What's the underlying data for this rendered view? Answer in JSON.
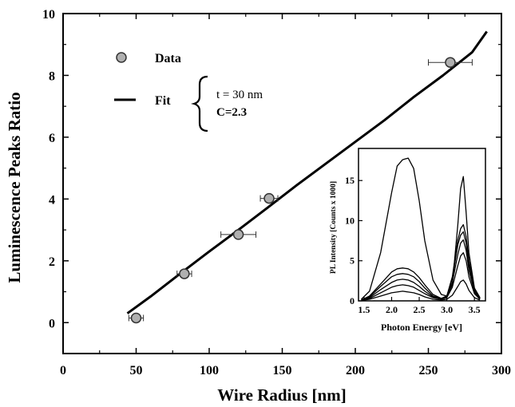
{
  "chart_data": [
    {
      "type": "scatter",
      "xlabel": "Wire Radius  [nm]",
      "ylabel": "Luminescence Peaks Ratio",
      "xlim": [
        0,
        300
      ],
      "ylim": [
        -1,
        10
      ],
      "xticks": [
        0,
        50,
        100,
        150,
        200,
        250,
        300
      ],
      "yticks": [
        0,
        2,
        4,
        6,
        8,
        10
      ],
      "grid": false,
      "legend_position": "top-left",
      "series": [
        {
          "name": "Data",
          "marker": "circle",
          "color": "#b0b0b0",
          "x": [
            50,
            83,
            120,
            141,
            265
          ],
          "y": [
            0.15,
            1.58,
            2.85,
            4.02,
            8.42
          ],
          "x_err": [
            5,
            5,
            12,
            6,
            15
          ]
        },
        {
          "name": "Fit",
          "style": "line",
          "color": "#000000",
          "x": [
            44,
            60,
            80,
            100,
            120,
            140,
            160,
            180,
            200,
            220,
            240,
            260,
            280,
            290
          ],
          "y": [
            0.3,
            0.85,
            1.58,
            2.3,
            3.0,
            3.72,
            4.45,
            5.15,
            5.85,
            6.55,
            7.3,
            8.0,
            8.75,
            9.42
          ]
        }
      ],
      "annotation": {
        "line1": "t = 30 nm",
        "line2": "C=2.3"
      }
    },
    {
      "type": "line",
      "role": "inset",
      "xlabel": "Photon Energy  [eV]",
      "ylabel": "PL Intensity  [Counts x 1000]",
      "xlim": [
        1.4,
        3.7
      ],
      "ylim": [
        0,
        19
      ],
      "xticks": [
        1.5,
        2.0,
        2.5,
        3.0,
        3.5
      ],
      "xtick_labels": [
        "1.5",
        "2.0",
        "2.5",
        "3.0",
        "3.5"
      ],
      "yticks": [
        0,
        5,
        10,
        15
      ],
      "series": [
        {
          "x": [
            1.45,
            1.6,
            1.8,
            2.0,
            2.1,
            2.2,
            2.3,
            2.4,
            2.5,
            2.6,
            2.75,
            2.9,
            3.0,
            3.1,
            3.2,
            3.25,
            3.3,
            3.35,
            3.4,
            3.5,
            3.6
          ],
          "y": [
            0.2,
            1.2,
            6.0,
            13.5,
            16.8,
            17.6,
            17.8,
            16.5,
            12.5,
            7.5,
            2.6,
            0.8,
            0.6,
            2.0,
            9.5,
            14.0,
            15.5,
            11.0,
            6.0,
            1.6,
            0.4
          ]
        },
        {
          "x": [
            1.45,
            1.6,
            1.8,
            2.0,
            2.1,
            2.2,
            2.3,
            2.4,
            2.5,
            2.6,
            2.75,
            2.9,
            3.0,
            3.1,
            3.2,
            3.25,
            3.3,
            3.35,
            3.4,
            3.5,
            3.6
          ],
          "y": [
            0.1,
            0.6,
            2.1,
            3.6,
            4.0,
            4.1,
            4.0,
            3.6,
            2.9,
            2.0,
            0.8,
            0.3,
            0.6,
            3.0,
            7.6,
            9.0,
            9.5,
            8.0,
            5.0,
            1.5,
            0.3
          ]
        },
        {
          "x": [
            1.45,
            1.6,
            1.8,
            2.0,
            2.1,
            2.2,
            2.3,
            2.4,
            2.5,
            2.6,
            2.75,
            2.9,
            3.0,
            3.1,
            3.2,
            3.25,
            3.3,
            3.35,
            3.4,
            3.5,
            3.6
          ],
          "y": [
            0.1,
            0.5,
            1.8,
            3.0,
            3.3,
            3.4,
            3.3,
            3.0,
            2.4,
            1.6,
            0.6,
            0.3,
            0.6,
            2.8,
            7.0,
            8.2,
            8.6,
            7.2,
            4.5,
            1.3,
            0.3
          ]
        },
        {
          "x": [
            1.45,
            1.6,
            1.8,
            2.0,
            2.1,
            2.2,
            2.3,
            2.4,
            2.5,
            2.6,
            2.75,
            2.9,
            3.0,
            3.1,
            3.2,
            3.25,
            3.3,
            3.35,
            3.4,
            3.5,
            3.6
          ],
          "y": [
            0.1,
            0.4,
            1.4,
            2.3,
            2.6,
            2.7,
            2.6,
            2.3,
            1.8,
            1.2,
            0.5,
            0.2,
            0.5,
            2.3,
            5.8,
            7.2,
            7.6,
            6.3,
            3.8,
            1.1,
            0.3
          ]
        },
        {
          "x": [
            1.45,
            1.6,
            1.8,
            2.0,
            2.1,
            2.2,
            2.3,
            2.4,
            2.5,
            2.6,
            2.75,
            2.9,
            3.0,
            3.1,
            3.2,
            3.25,
            3.3,
            3.35,
            3.4,
            3.5,
            3.6
          ],
          "y": [
            0.05,
            0.3,
            1.0,
            1.7,
            1.9,
            2.0,
            1.9,
            1.7,
            1.3,
            0.9,
            0.4,
            0.2,
            0.4,
            1.7,
            4.4,
            5.6,
            6.0,
            5.0,
            3.0,
            0.9,
            0.2
          ]
        },
        {
          "x": [
            1.45,
            1.6,
            1.8,
            2.0,
            2.1,
            2.2,
            2.3,
            2.4,
            2.5,
            2.6,
            2.75,
            2.9,
            3.0,
            3.1,
            3.2,
            3.25,
            3.3,
            3.35,
            3.4,
            3.5,
            3.6
          ],
          "y": [
            0.05,
            0.2,
            0.6,
            1.0,
            1.1,
            1.2,
            1.1,
            1.0,
            0.8,
            0.5,
            0.2,
            0.1,
            0.2,
            0.7,
            1.8,
            2.4,
            2.6,
            2.1,
            1.3,
            0.4,
            0.1
          ]
        }
      ]
    }
  ]
}
